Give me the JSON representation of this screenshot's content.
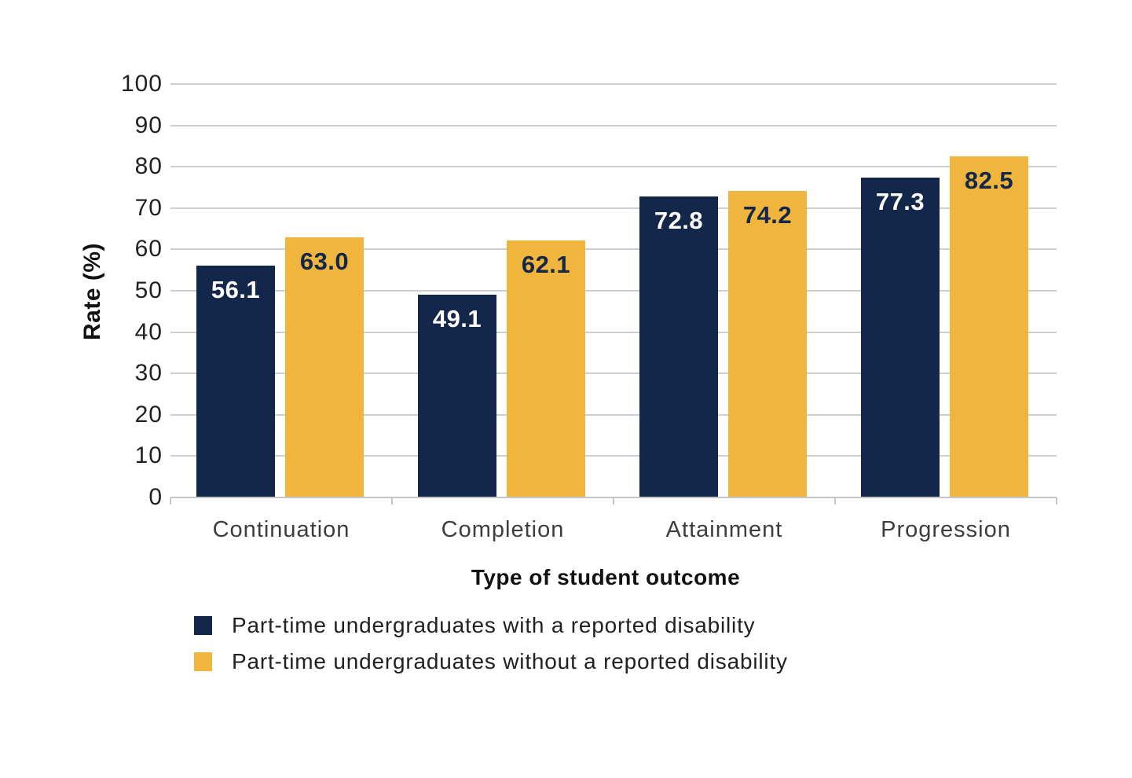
{
  "colors": {
    "background": "#ffffff",
    "navy": "#12274a",
    "yellow": "#f0b53c",
    "gridline": "#cdced2",
    "axis": "#c4c5c9",
    "tick_label": "#232021",
    "category_label": "#3d3d3d",
    "title_text": "#111111"
  },
  "chart_data": {
    "type": "bar",
    "categories": [
      "Continuation",
      "Completion",
      "Attainment",
      "Progression"
    ],
    "series": [
      {
        "name": "Part-time undergraduates with a reported disability",
        "color": "#12274a",
        "label_color": "#ffffff",
        "values": [
          56.1,
          49.1,
          72.8,
          77.3
        ]
      },
      {
        "name": "Part-time undergraduates without a reported disability",
        "color": "#f0b53c",
        "label_color": "#12274a",
        "values": [
          63.0,
          62.1,
          74.2,
          82.5
        ]
      }
    ],
    "title": "",
    "xlabel": "Type of student outcome",
    "ylabel": "Rate (%)",
    "ylim": [
      0,
      100
    ],
    "yticks": [
      0,
      10,
      20,
      30,
      40,
      50,
      60,
      70,
      80,
      90,
      100
    ],
    "value_label_decimals": 1,
    "grid": "horizontal",
    "legend_position": "bottom-left"
  }
}
